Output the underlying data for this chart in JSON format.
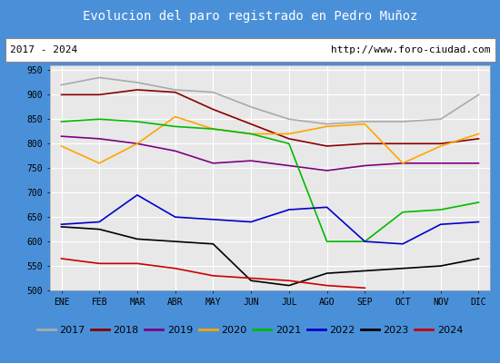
{
  "title": "Evolucion del paro registrado en Pedro Muñoz",
  "title_bg": "#4a90d9",
  "subtitle_left": "2017 - 2024",
  "subtitle_right": "http://www.foro-ciudad.com",
  "months": [
    "ENE",
    "FEB",
    "MAR",
    "ABR",
    "MAY",
    "JUN",
    "JUL",
    "AGO",
    "SEP",
    "OCT",
    "NOV",
    "DIC"
  ],
  "ylim": [
    500,
    960
  ],
  "yticks": [
    500,
    550,
    600,
    650,
    700,
    750,
    800,
    850,
    900,
    950
  ],
  "series": {
    "2017": {
      "color": "#aaaaaa",
      "values": [
        920,
        935,
        925,
        910,
        905,
        875,
        850,
        840,
        845,
        845,
        850,
        900
      ]
    },
    "2018": {
      "color": "#8b0000",
      "values": [
        900,
        900,
        910,
        905,
        870,
        840,
        810,
        795,
        800,
        800,
        800,
        810
      ]
    },
    "2019": {
      "color": "#800080",
      "values": [
        815,
        810,
        800,
        785,
        760,
        765,
        755,
        745,
        755,
        760,
        760,
        760
      ]
    },
    "2020": {
      "color": "#ffa500",
      "values": [
        795,
        760,
        800,
        855,
        830,
        820,
        820,
        835,
        840,
        760,
        795,
        820
      ]
    },
    "2021": {
      "color": "#00bb00",
      "values": [
        845,
        850,
        845,
        835,
        830,
        820,
        800,
        600,
        600,
        660,
        665,
        680
      ]
    },
    "2022": {
      "color": "#0000cc",
      "values": [
        635,
        640,
        695,
        650,
        645,
        640,
        665,
        670,
        600,
        595,
        635,
        640
      ]
    },
    "2023": {
      "color": "#000000",
      "values": [
        630,
        625,
        605,
        600,
        595,
        520,
        510,
        535,
        540,
        545,
        550,
        565
      ]
    },
    "2024": {
      "color": "#cc0000",
      "values": [
        565,
        555,
        555,
        545,
        530,
        525,
        520,
        510,
        505,
        null,
        null,
        null
      ]
    }
  }
}
